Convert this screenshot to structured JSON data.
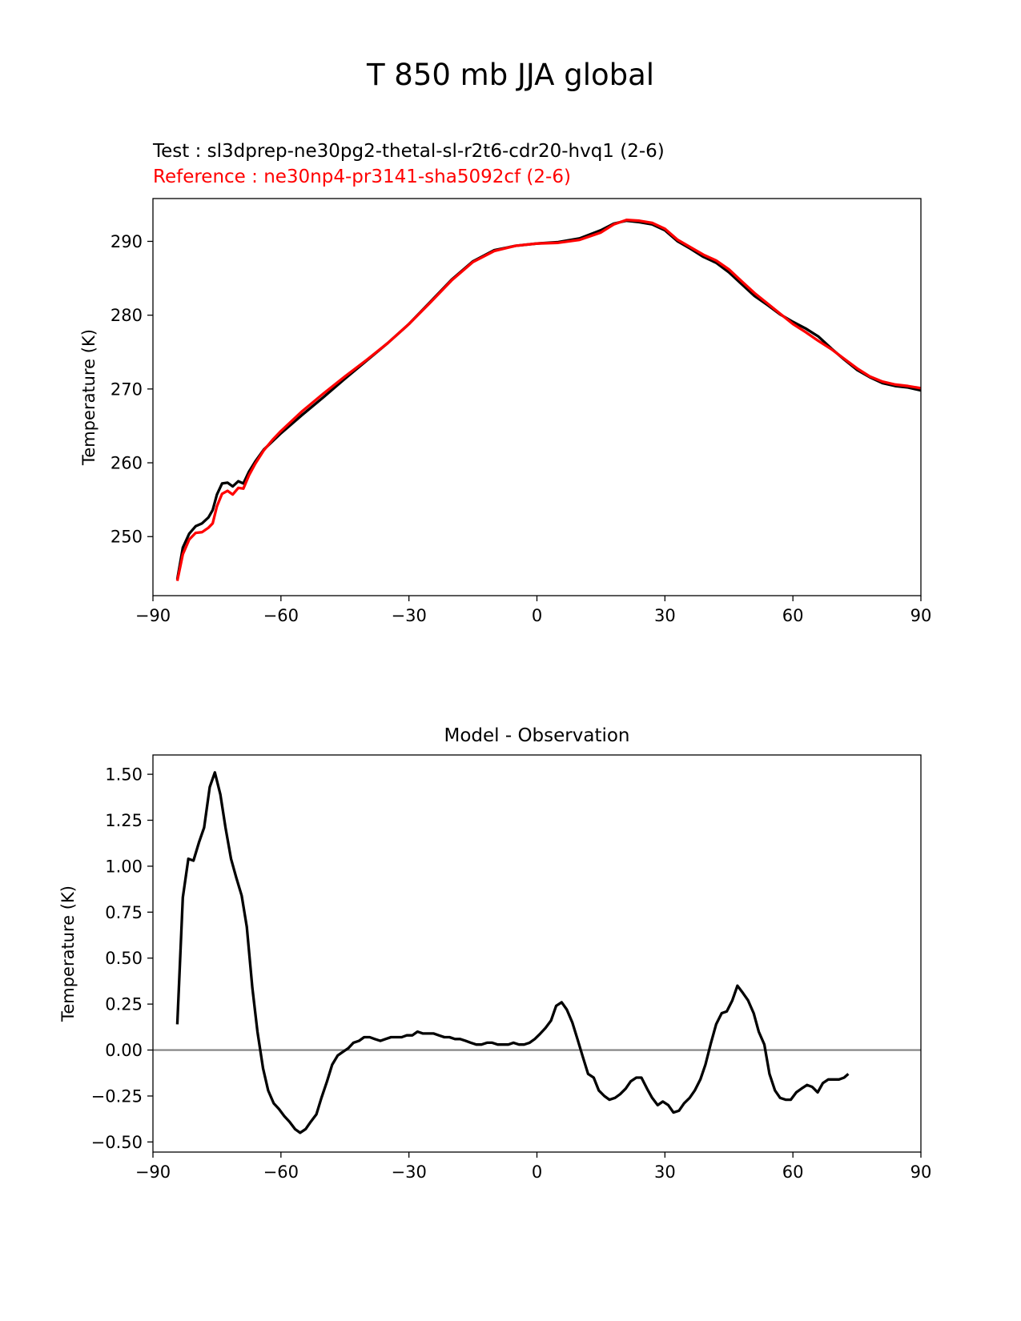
{
  "figure": {
    "suptitle": "T 850 mb JJA global"
  },
  "colors": {
    "test": "#000000",
    "reference": "#ff0000",
    "difference": "#000000",
    "zero_line": "#808080"
  },
  "chart_data": [
    {
      "type": "line",
      "title_test": "Test : sl3dprep-ne30pg2-thetal-sl-r2t6-cdr20-hvq1 (2-6)",
      "title_reference": "Reference : ne30np4-pr3141-sha5092cf (2-6)",
      "xlabel": "",
      "ylabel": "Temperature (K)",
      "xlim": [
        -90,
        90
      ],
      "ylim": [
        242,
        295.8
      ],
      "xticks": [
        -90,
        -60,
        -30,
        0,
        30,
        60,
        90
      ],
      "xtick_labels": [
        "−90",
        "−60",
        "−30",
        "0",
        "30",
        "60",
        "90"
      ],
      "yticks": [
        250,
        260,
        270,
        280,
        290
      ],
      "ytick_labels": [
        "250",
        "260",
        "270",
        "280",
        "290"
      ],
      "series": [
        {
          "name": "Test : sl3dprep-ne30pg2-thetal-sl-r2t6-cdr20-hvq1 (2-6)",
          "points": [
            [
              -84.3,
              244.2
            ],
            [
              -83,
              248.5
            ],
            [
              -81.5,
              250.4
            ],
            [
              -80,
              251.4
            ],
            [
              -78.5,
              251.8
            ],
            [
              -77,
              252.6
            ],
            [
              -76,
              253.6
            ],
            [
              -75,
              255.7
            ],
            [
              -73.8,
              257.2
            ],
            [
              -72.5,
              257.3
            ],
            [
              -71.3,
              256.8
            ],
            [
              -70,
              257.5
            ],
            [
              -68.8,
              257.2
            ],
            [
              -67.5,
              258.8
            ],
            [
              -66,
              260.2
            ],
            [
              -64,
              261.8
            ],
            [
              -62,
              262.9
            ],
            [
              -60,
              264
            ],
            [
              -55,
              266.5
            ],
            [
              -50,
              268.9
            ],
            [
              -45,
              271.4
            ],
            [
              -40,
              273.8
            ],
            [
              -35,
              276.2
            ],
            [
              -30,
              278.8
            ],
            [
              -25,
              281.8
            ],
            [
              -20,
              284.8
            ],
            [
              -15,
              287.3
            ],
            [
              -10,
              288.8
            ],
            [
              -5,
              289.4
            ],
            [
              0,
              289.7
            ],
            [
              5,
              289.9
            ],
            [
              10,
              290.4
            ],
            [
              15,
              291.5
            ],
            [
              18,
              292.4
            ],
            [
              21,
              292.8
            ],
            [
              24,
              292.6
            ],
            [
              27,
              292.3
            ],
            [
              30,
              291.5
            ],
            [
              33,
              290
            ],
            [
              36,
              289
            ],
            [
              39,
              287.9
            ],
            [
              42,
              287.1
            ],
            [
              45,
              285.8
            ],
            [
              48,
              284.2
            ],
            [
              51,
              282.6
            ],
            [
              54,
              281.4
            ],
            [
              57,
              280.1
            ],
            [
              60,
              279.1
            ],
            [
              63,
              278.2
            ],
            [
              66,
              277.1
            ],
            [
              69,
              275.5
            ],
            [
              72,
              274
            ],
            [
              75,
              272.6
            ],
            [
              78,
              271.6
            ],
            [
              81,
              270.8
            ],
            [
              84,
              270.4
            ],
            [
              87,
              270.2
            ],
            [
              90,
              269.8
            ]
          ]
        },
        {
          "name": "Reference : ne30np4-pr3141-sha5092cf (2-6)",
          "points": [
            [
              -84.3,
              244
            ],
            [
              -83,
              247.6
            ],
            [
              -81.5,
              249.6
            ],
            [
              -80,
              250.5
            ],
            [
              -78.5,
              250.6
            ],
            [
              -77,
              251.2
            ],
            [
              -76,
              251.8
            ],
            [
              -75,
              254.1
            ],
            [
              -73.8,
              255.8
            ],
            [
              -72.5,
              256.2
            ],
            [
              -71.3,
              255.7
            ],
            [
              -70,
              256.6
            ],
            [
              -68.8,
              256.5
            ],
            [
              -67.5,
              258.3
            ],
            [
              -66,
              259.9
            ],
            [
              -64,
              261.7
            ],
            [
              -62,
              263.1
            ],
            [
              -60,
              264.3
            ],
            [
              -55,
              267
            ],
            [
              -50,
              269.4
            ],
            [
              -45,
              271.7
            ],
            [
              -40,
              273.9
            ],
            [
              -35,
              276.2
            ],
            [
              -30,
              278.8
            ],
            [
              -25,
              281.7
            ],
            [
              -20,
              284.7
            ],
            [
              -15,
              287.2
            ],
            [
              -10,
              288.7
            ],
            [
              -5,
              289.4
            ],
            [
              0,
              289.7
            ],
            [
              5,
              289.8
            ],
            [
              10,
              290.2
            ],
            [
              15,
              291.2
            ],
            [
              18,
              292.3
            ],
            [
              21,
              292.9
            ],
            [
              24,
              292.8
            ],
            [
              27,
              292.5
            ],
            [
              30,
              291.7
            ],
            [
              33,
              290.2
            ],
            [
              36,
              289.2
            ],
            [
              39,
              288.2
            ],
            [
              42,
              287.4
            ],
            [
              45,
              286.2
            ],
            [
              48,
              284.6
            ],
            [
              51,
              283
            ],
            [
              54,
              281.6
            ],
            [
              57,
              280.2
            ],
            [
              60,
              278.8
            ],
            [
              63,
              277.7
            ],
            [
              66,
              276.5
            ],
            [
              69,
              275.4
            ],
            [
              72,
              274.1
            ],
            [
              75,
              272.8
            ],
            [
              78,
              271.7
            ],
            [
              81,
              271
            ],
            [
              84,
              270.6
            ],
            [
              87,
              270.4
            ],
            [
              90,
              270.1
            ]
          ]
        }
      ]
    },
    {
      "type": "line",
      "title": "Model - Observation",
      "xlabel": "",
      "ylabel": "Temperature (K)",
      "xlim": [
        -90,
        90
      ],
      "ylim": [
        -0.555,
        1.605
      ],
      "xticks": [
        -90,
        -60,
        -30,
        0,
        30,
        60,
        90
      ],
      "xtick_labels": [
        "−90",
        "−60",
        "−30",
        "0",
        "30",
        "60",
        "90"
      ],
      "yticks": [
        -0.5,
        -0.25,
        0,
        0.25,
        0.5,
        0.75,
        1,
        1.25,
        1.5
      ],
      "ytick_labels": [
        "−0.50",
        "−0.25",
        "0.00",
        "0.25",
        "0.50",
        "0.75",
        "1.00",
        "1.25",
        "1.50"
      ],
      "zero_line": 0,
      "series": [
        {
          "points": [
            [
              -84.3,
              0.14
            ],
            [
              -83,
              0.83
            ],
            [
              -81.7,
              1.04
            ],
            [
              -80.5,
              1.03
            ],
            [
              -79.2,
              1.13
            ],
            [
              -78,
              1.21
            ],
            [
              -76.7,
              1.43
            ],
            [
              -75.5,
              1.51
            ],
            [
              -74.2,
              1.39
            ],
            [
              -73,
              1.21
            ],
            [
              -71.7,
              1.04
            ],
            [
              -70.5,
              0.94
            ],
            [
              -69.2,
              0.84
            ],
            [
              -68,
              0.67
            ],
            [
              -66.7,
              0.34
            ],
            [
              -65.5,
              0.1
            ],
            [
              -64.2,
              -0.1
            ],
            [
              -63,
              -0.22
            ],
            [
              -61.7,
              -0.29
            ],
            [
              -60.5,
              -0.32
            ],
            [
              -59.2,
              -0.36
            ],
            [
              -58,
              -0.39
            ],
            [
              -56.7,
              -0.43
            ],
            [
              -55.5,
              -0.45
            ],
            [
              -54.2,
              -0.43
            ],
            [
              -53,
              -0.39
            ],
            [
              -51.7,
              -0.35
            ],
            [
              -50.5,
              -0.26
            ],
            [
              -49.2,
              -0.17
            ],
            [
              -48,
              -0.08
            ],
            [
              -46.7,
              -0.03
            ],
            [
              -45.5,
              -0.01
            ],
            [
              -44.2,
              0.01
            ],
            [
              -43,
              0.04
            ],
            [
              -41.7,
              0.05
            ],
            [
              -40.5,
              0.07
            ],
            [
              -39.2,
              0.07
            ],
            [
              -38,
              0.06
            ],
            [
              -36.7,
              0.05
            ],
            [
              -35.5,
              0.06
            ],
            [
              -34.2,
              0.07
            ],
            [
              -33,
              0.07
            ],
            [
              -31.7,
              0.07
            ],
            [
              -30.5,
              0.08
            ],
            [
              -29.2,
              0.08
            ],
            [
              -28,
              0.1
            ],
            [
              -26.7,
              0.09
            ],
            [
              -25.5,
              0.09
            ],
            [
              -24.2,
              0.09
            ],
            [
              -23,
              0.08
            ],
            [
              -21.7,
              0.07
            ],
            [
              -20.5,
              0.07
            ],
            [
              -19.2,
              0.06
            ],
            [
              -18,
              0.06
            ],
            [
              -16.7,
              0.05
            ],
            [
              -15.5,
              0.04
            ],
            [
              -14.2,
              0.03
            ],
            [
              -13,
              0.03
            ],
            [
              -11.7,
              0.04
            ],
            [
              -10.5,
              0.04
            ],
            [
              -9.2,
              0.03
            ],
            [
              -8,
              0.03
            ],
            [
              -6.7,
              0.03
            ],
            [
              -5.5,
              0.04
            ],
            [
              -4.2,
              0.03
            ],
            [
              -3,
              0.03
            ],
            [
              -1.7,
              0.04
            ],
            [
              -0.5,
              0.06
            ],
            [
              0.8,
              0.09
            ],
            [
              2,
              0.12
            ],
            [
              3.3,
              0.16
            ],
            [
              4.5,
              0.24
            ],
            [
              5.8,
              0.26
            ],
            [
              7,
              0.22
            ],
            [
              8.3,
              0.15
            ],
            [
              9.5,
              0.06
            ],
            [
              10.8,
              -0.04
            ],
            [
              12,
              -0.13
            ],
            [
              13.3,
              -0.15
            ],
            [
              14.5,
              -0.22
            ],
            [
              15.8,
              -0.25
            ],
            [
              17,
              -0.27
            ],
            [
              18.3,
              -0.26
            ],
            [
              19.5,
              -0.24
            ],
            [
              20.8,
              -0.21
            ],
            [
              22,
              -0.17
            ],
            [
              23.3,
              -0.15
            ],
            [
              24.5,
              -0.15
            ],
            [
              25.8,
              -0.21
            ],
            [
              27,
              -0.26
            ],
            [
              28.3,
              -0.3
            ],
            [
              29.5,
              -0.28
            ],
            [
              30.8,
              -0.3
            ],
            [
              32,
              -0.34
            ],
            [
              33.3,
              -0.33
            ],
            [
              34.5,
              -0.29
            ],
            [
              35.8,
              -0.26
            ],
            [
              37,
              -0.22
            ],
            [
              38.3,
              -0.16
            ],
            [
              39.5,
              -0.08
            ],
            [
              40.8,
              0.04
            ],
            [
              42,
              0.14
            ],
            [
              43.3,
              0.2
            ],
            [
              44.5,
              0.21
            ],
            [
              45.8,
              0.27
            ],
            [
              47,
              0.35
            ],
            [
              48.3,
              0.31
            ],
            [
              49.5,
              0.27
            ],
            [
              50.8,
              0.2
            ],
            [
              52,
              0.1
            ],
            [
              53.3,
              0.03
            ],
            [
              54.5,
              -0.13
            ],
            [
              55.8,
              -0.22
            ],
            [
              57,
              -0.26
            ],
            [
              58.3,
              -0.27
            ],
            [
              59.5,
              -0.27
            ],
            [
              60.8,
              -0.23
            ],
            [
              62,
              -0.21
            ],
            [
              63.3,
              -0.19
            ],
            [
              64.5,
              -0.2
            ],
            [
              65.8,
              -0.23
            ],
            [
              67,
              -0.18
            ],
            [
              68.3,
              -0.16
            ],
            [
              69.5,
              -0.16
            ],
            [
              70.8,
              -0.16
            ],
            [
              72,
              -0.15
            ],
            [
              73,
              -0.13
            ]
          ]
        }
      ]
    }
  ]
}
